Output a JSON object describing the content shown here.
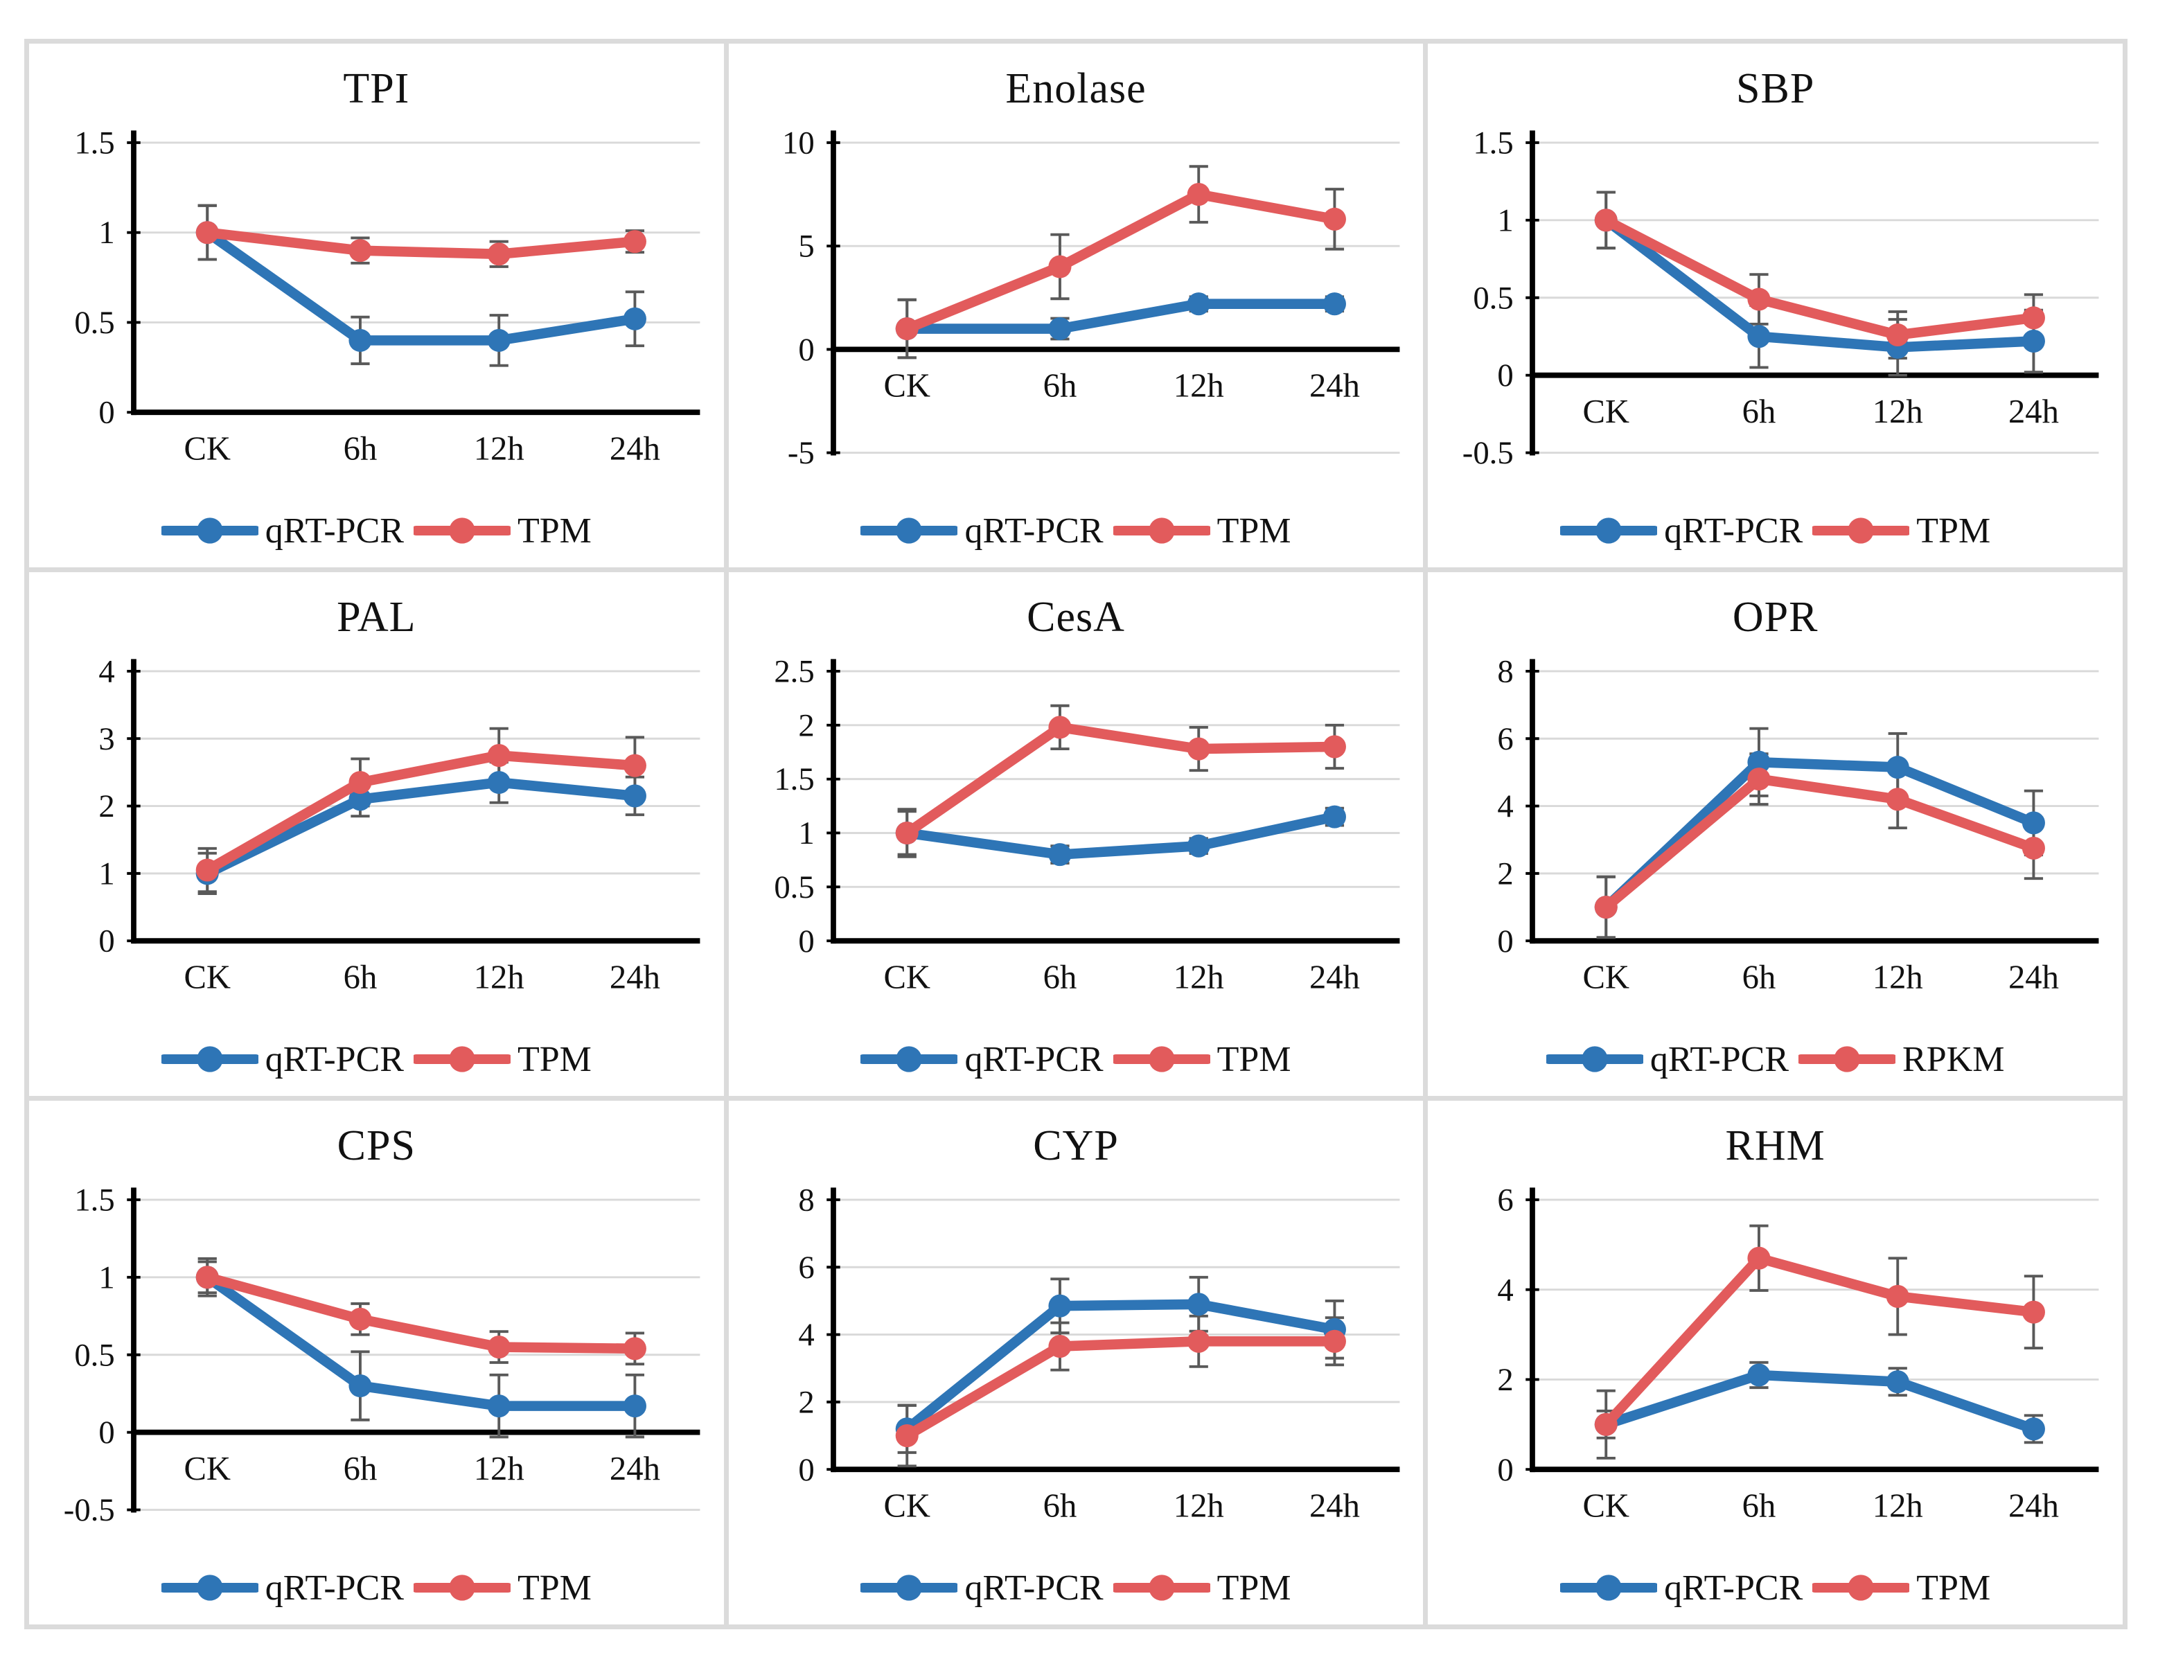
{
  "figure": {
    "description": "3x3 grid of gene expression validation line charts comparing qRT-PCR with transcriptome abundance values across time points",
    "border_color": "#dbdbdb",
    "background": "#ffffff"
  },
  "colors": {
    "qrt_pcr_blue": "#2e75b6",
    "tpm_red": "#e25b5c",
    "error_bar": "#595959",
    "gridline": "#d9d9d9",
    "axis": "#000000",
    "text": "#111111"
  },
  "chart_data": [
    {
      "type": "line",
      "title": "TPI",
      "categories": [
        "CK",
        "6h",
        "12h",
        "24h"
      ],
      "y_ticks": [
        0,
        0.5,
        1,
        1.5
      ],
      "y_tick_labels": [
        "0",
        "0.5",
        "1",
        "1.5"
      ],
      "ylim": [
        0,
        1.5
      ],
      "grid": true,
      "legend_position": "bottom",
      "series": [
        {
          "name": "qRT-PCR",
          "color": "#2e75b6",
          "values": [
            1.0,
            0.4,
            0.4,
            0.52
          ],
          "errors": [
            0.15,
            0.13,
            0.14,
            0.15
          ]
        },
        {
          "name": "TPM",
          "color": "#e25b5c",
          "values": [
            1.0,
            0.9,
            0.88,
            0.95
          ],
          "errors": [
            0.15,
            0.07,
            0.07,
            0.06
          ]
        }
      ]
    },
    {
      "type": "line",
      "title": "Enolase",
      "categories": [
        "CK",
        "6h",
        "12h",
        "24h"
      ],
      "y_ticks": [
        -5,
        0,
        5,
        10
      ],
      "y_tick_labels": [
        "-5",
        "0",
        "5",
        "10"
      ],
      "ylim": [
        -5,
        10
      ],
      "grid": true,
      "legend_position": "bottom",
      "series": [
        {
          "name": "qRT-PCR",
          "color": "#2e75b6",
          "values": [
            1.0,
            1.0,
            2.2,
            2.2
          ],
          "errors": [
            1.4,
            0.5,
            0.35,
            0.35
          ]
        },
        {
          "name": "TPM",
          "color": "#e25b5c",
          "values": [
            1.0,
            4.0,
            7.5,
            6.3
          ],
          "errors": [
            1.4,
            1.55,
            1.35,
            1.45
          ]
        }
      ]
    },
    {
      "type": "line",
      "title": "SBP",
      "categories": [
        "CK",
        "6h",
        "12h",
        "24h"
      ],
      "y_ticks": [
        -0.5,
        0,
        0.5,
        1,
        1.5
      ],
      "y_tick_labels": [
        "-0.5",
        "0",
        "0.5",
        "1",
        "1.5"
      ],
      "ylim": [
        -0.5,
        1.5
      ],
      "grid": true,
      "legend_position": "bottom",
      "series": [
        {
          "name": "qRT-PCR",
          "color": "#2e75b6",
          "values": [
            1.0,
            0.25,
            0.18,
            0.22
          ],
          "errors": [
            0.18,
            0.2,
            0.18,
            0.2
          ]
        },
        {
          "name": "TPM",
          "color": "#e25b5c",
          "values": [
            1.0,
            0.49,
            0.26,
            0.37
          ],
          "errors": [
            0.18,
            0.16,
            0.15,
            0.15
          ]
        }
      ]
    },
    {
      "type": "line",
      "title": "PAL",
      "categories": [
        "CK",
        "6h",
        "12h",
        "24h"
      ],
      "y_ticks": [
        0,
        1,
        2,
        3,
        4
      ],
      "y_tick_labels": [
        "0",
        "1",
        "2",
        "3",
        "4"
      ],
      "ylim": [
        0,
        4
      ],
      "grid": true,
      "legend_position": "bottom",
      "series": [
        {
          "name": "qRT-PCR",
          "color": "#2e75b6",
          "values": [
            1.0,
            2.1,
            2.35,
            2.15
          ],
          "errors": [
            0.3,
            0.25,
            0.3,
            0.28
          ]
        },
        {
          "name": "TPM",
          "color": "#e25b5c",
          "values": [
            1.05,
            2.35,
            2.75,
            2.6
          ],
          "errors": [
            0.32,
            0.35,
            0.4,
            0.42
          ]
        }
      ]
    },
    {
      "type": "line",
      "title": "CesA",
      "categories": [
        "CK",
        "6h",
        "12h",
        "24h"
      ],
      "y_ticks": [
        0,
        0.5,
        1,
        1.5,
        2,
        2.5
      ],
      "y_tick_labels": [
        "0",
        "0.5",
        "1",
        "1.5",
        "2",
        "2.5"
      ],
      "ylim": [
        0,
        2.5
      ],
      "grid": true,
      "legend_position": "bottom",
      "series": [
        {
          "name": "qRT-PCR",
          "color": "#2e75b6",
          "values": [
            1.0,
            0.8,
            0.88,
            1.15
          ],
          "errors": [
            0.2,
            0.08,
            0.07,
            0.08
          ]
        },
        {
          "name": "TPM",
          "color": "#e25b5c",
          "values": [
            1.0,
            1.98,
            1.78,
            1.8
          ],
          "errors": [
            0.22,
            0.2,
            0.2,
            0.2
          ]
        }
      ]
    },
    {
      "type": "line",
      "title": "OPR",
      "categories": [
        "CK",
        "6h",
        "12h",
        "24h"
      ],
      "y_ticks": [
        0,
        2,
        4,
        6,
        8
      ],
      "y_tick_labels": [
        "0",
        "2",
        "4",
        "6",
        "8"
      ],
      "ylim": [
        0,
        8
      ],
      "grid": true,
      "legend_position": "bottom",
      "series": [
        {
          "name": "qRT-PCR",
          "color": "#2e75b6",
          "values": [
            1.0,
            5.3,
            5.15,
            3.5
          ],
          "errors": [
            0.9,
            1.0,
            1.0,
            0.95
          ]
        },
        {
          "name": "RPKM",
          "color": "#e25b5c",
          "values": [
            1.0,
            4.8,
            4.2,
            2.75
          ],
          "errors": [
            0.9,
            0.75,
            0.85,
            0.9
          ]
        }
      ]
    },
    {
      "type": "line",
      "title": "CPS",
      "categories": [
        "CK",
        "6h",
        "12h",
        "24h"
      ],
      "y_ticks": [
        -0.5,
        0,
        0.5,
        1,
        1.5
      ],
      "y_tick_labels": [
        "-0.5",
        "0",
        "0.5",
        "1",
        "1.5"
      ],
      "ylim": [
        -0.5,
        1.5
      ],
      "grid": true,
      "legend_position": "bottom",
      "series": [
        {
          "name": "qRT-PCR",
          "color": "#2e75b6",
          "values": [
            1.0,
            0.3,
            0.17,
            0.17
          ],
          "errors": [
            0.1,
            0.22,
            0.2,
            0.2
          ]
        },
        {
          "name": "TPM",
          "color": "#e25b5c",
          "values": [
            1.0,
            0.73,
            0.55,
            0.54
          ],
          "errors": [
            0.12,
            0.1,
            0.1,
            0.1
          ]
        }
      ]
    },
    {
      "type": "line",
      "title": "CYP",
      "categories": [
        "CK",
        "6h",
        "12h",
        "24h"
      ],
      "y_ticks": [
        0,
        2,
        4,
        6,
        8
      ],
      "y_tick_labels": [
        "0",
        "2",
        "4",
        "6",
        "8"
      ],
      "ylim": [
        0,
        8
      ],
      "grid": true,
      "legend_position": "bottom",
      "series": [
        {
          "name": "qRT-PCR",
          "color": "#2e75b6",
          "values": [
            1.2,
            4.85,
            4.9,
            4.15
          ],
          "errors": [
            0.7,
            0.8,
            0.8,
            0.85
          ]
        },
        {
          "name": "TPM",
          "color": "#e25b5c",
          "values": [
            1.0,
            3.65,
            3.8,
            3.8
          ],
          "errors": [
            0.9,
            0.7,
            0.75,
            0.7
          ]
        }
      ]
    },
    {
      "type": "line",
      "title": "RHM",
      "categories": [
        "CK",
        "6h",
        "12h",
        "24h"
      ],
      "y_ticks": [
        0,
        2,
        4,
        6
      ],
      "y_tick_labels": [
        "0",
        "2",
        "4",
        "6"
      ],
      "ylim": [
        0,
        6
      ],
      "grid": true,
      "legend_position": "bottom",
      "series": [
        {
          "name": "qRT-PCR",
          "color": "#2e75b6",
          "values": [
            1.0,
            2.1,
            1.95,
            0.9
          ],
          "errors": [
            0.3,
            0.28,
            0.3,
            0.3
          ]
        },
        {
          "name": "TPM",
          "color": "#e25b5c",
          "values": [
            1.0,
            4.7,
            3.85,
            3.5
          ],
          "errors": [
            0.75,
            0.72,
            0.85,
            0.8
          ]
        }
      ]
    }
  ]
}
